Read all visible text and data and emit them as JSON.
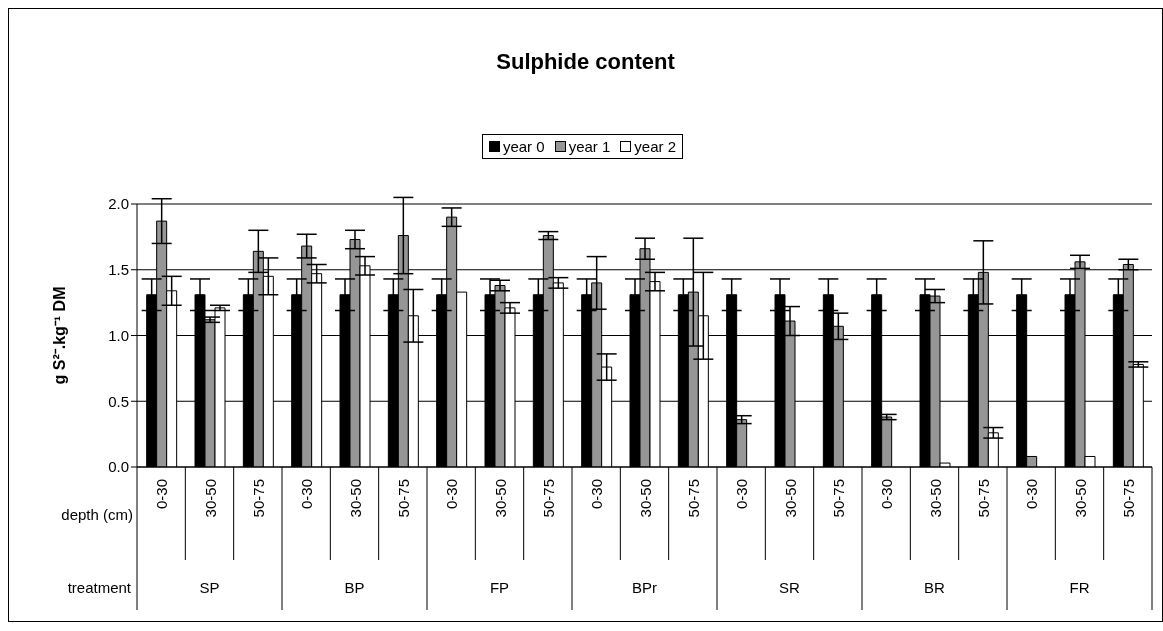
{
  "chart_data": {
    "type": "bar",
    "title": "Sulphide content",
    "ylabel": "g S²⁻.kg⁻¹ DM",
    "xlabel": "depth (cm)",
    "categories": [
      "0-30",
      "30-50",
      "50-75",
      "0-30",
      "30-50",
      "50-75",
      "0-30",
      "30-50",
      "50-75",
      "0-30",
      "30-50",
      "50-75",
      "0-30",
      "30-50",
      "50-75",
      "0-30",
      "30-50",
      "50-75",
      "0-30",
      "30-50",
      "50-75"
    ],
    "annotations": [
      "treatment",
      "SP",
      "BP",
      "FP",
      "BPr",
      "SR",
      "BR",
      "FR"
    ],
    "series": [
      {
        "name": "year 0",
        "color": "#000000",
        "values": [
          1.31,
          1.31,
          1.31,
          1.31,
          1.31,
          1.31,
          1.31,
          1.31,
          1.31,
          1.31,
          1.31,
          1.31,
          1.31,
          1.31,
          1.31,
          1.31,
          1.31,
          1.31,
          1.31,
          1.31,
          1.31
        ],
        "errors": [
          0.12,
          0.12,
          0.12,
          0.12,
          0.12,
          0.12,
          0.12,
          0.12,
          0.12,
          0.12,
          0.12,
          0.12,
          0.12,
          0.12,
          0.12,
          0.12,
          0.12,
          0.12,
          0.12,
          0.12,
          0.12
        ]
      },
      {
        "name": "year 1",
        "color": "#969696",
        "values": [
          1.87,
          1.12,
          1.64,
          1.68,
          1.73,
          1.76,
          1.9,
          1.38,
          1.76,
          1.4,
          1.66,
          1.33,
          0.36,
          1.11,
          1.07,
          0.38,
          1.3,
          1.48,
          0.08,
          1.56,
          1.54
        ],
        "errors": [
          0.17,
          0.02,
          0.16,
          0.09,
          0.07,
          0.29,
          0.07,
          0.04,
          0.03,
          0.2,
          0.08,
          0.41,
          0.03,
          0.11,
          0.1,
          0.02,
          0.05,
          0.24,
          null,
          0.05,
          0.04
        ]
      },
      {
        "name": "year 2",
        "color": "#ffffff",
        "values": [
          1.34,
          1.21,
          1.45,
          1.47,
          1.53,
          1.15,
          1.33,
          1.21,
          1.4,
          0.76,
          1.41,
          1.15,
          0,
          0,
          0,
          0,
          0.03,
          0.26,
          0,
          0.08,
          0.78
        ],
        "errors": [
          0.11,
          0.02,
          0.14,
          0.07,
          0.07,
          0.2,
          null,
          0.04,
          0.04,
          0.1,
          0.07,
          0.33,
          null,
          null,
          null,
          null,
          null,
          0.04,
          null,
          null,
          0.02
        ]
      }
    ],
    "ylim": [
      0,
      2
    ],
    "yticks": [
      {
        "value": 0,
        "label": "0.0"
      },
      {
        "value": 0.5,
        "label": "0.5"
      },
      {
        "value": 1,
        "label": "1.0"
      },
      {
        "value": 1.5,
        "label": "1.5"
      },
      {
        "value": 2,
        "label": "2.0"
      }
    ],
    "grid": "y",
    "legend": "top"
  }
}
